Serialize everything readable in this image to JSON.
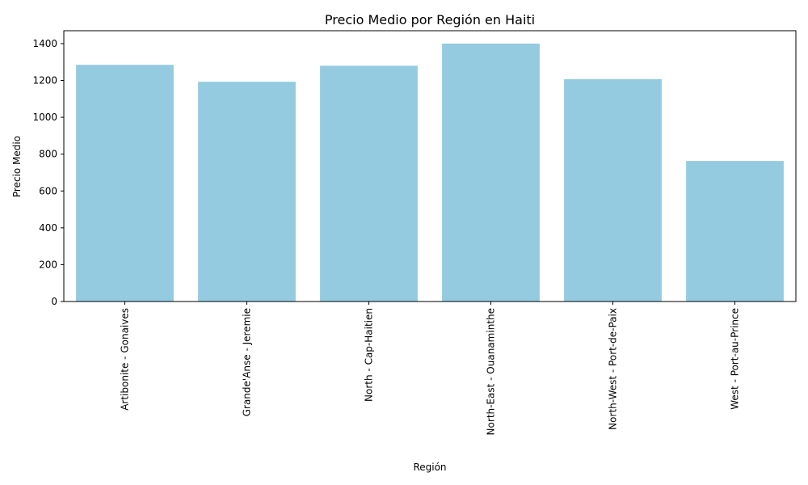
{
  "chart_data": {
    "type": "bar",
    "title": "Precio Medio por Región en Haiti",
    "xlabel": "Región",
    "ylabel": "Precio Medio",
    "categories": [
      "Artibonite - Gonaives",
      "Grande'Anse - Jeremie",
      "North - Cap-Haitien",
      "North-East - Ouanaminthe",
      "North-West - Port-de-Paix",
      "West - Port-au-Prince"
    ],
    "values": [
      1285,
      1193,
      1280,
      1400,
      1207,
      763
    ],
    "ylim": [
      0,
      1470
    ],
    "yticks": [
      0,
      200,
      400,
      600,
      800,
      1000,
      1200,
      1400
    ],
    "ytick_labels": [
      "0",
      "200",
      "400",
      "600",
      "800",
      "1000",
      "1200",
      "1400"
    ],
    "bar_color": "#95cbe0",
    "grid": false,
    "legend": "none"
  }
}
